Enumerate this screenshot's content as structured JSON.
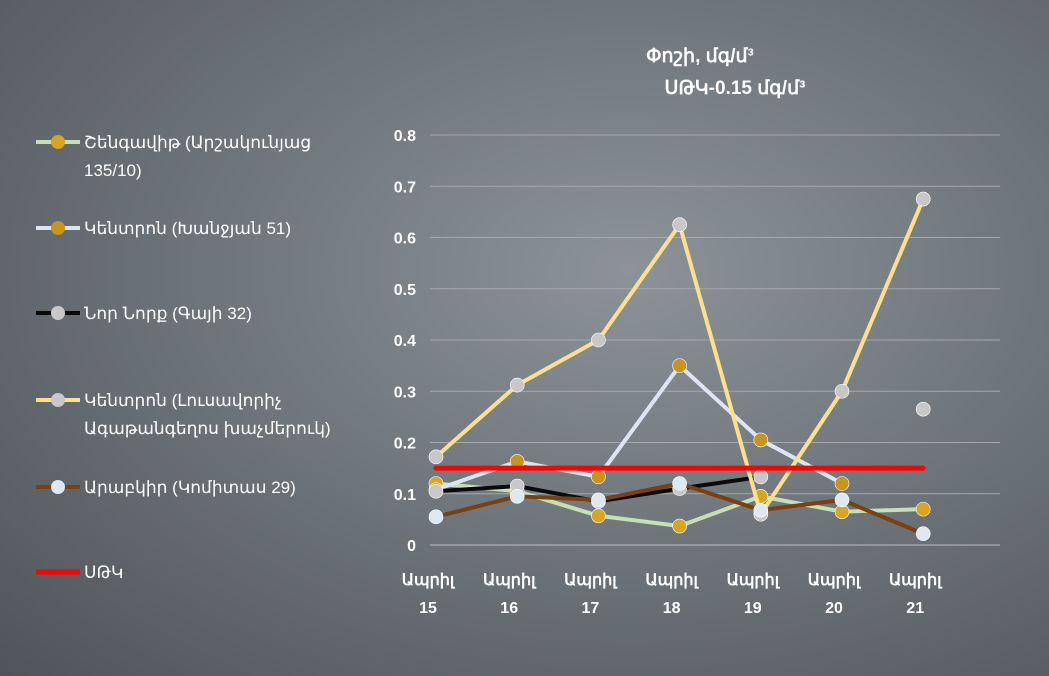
{
  "chart_data": {
    "type": "line",
    "title": "Փոշի, մգ/մ³",
    "subtitle": "ՍԹԿ-0.15 մգ/մ³",
    "categories": [
      [
        "Ապրիլ",
        "15"
      ],
      [
        "Ապրիլ",
        "16"
      ],
      [
        "Ապրիլ",
        "17"
      ],
      [
        "Ապրիլ",
        "18"
      ],
      [
        "Ապրիլ",
        "19"
      ],
      [
        "Ապրիլ",
        "20"
      ],
      [
        "Ապրիլ",
        "21"
      ]
    ],
    "ylim": [
      0,
      0.8
    ],
    "yticks": [
      "0",
      "0.1",
      "0.2",
      "0.3",
      "0.4",
      "0.5",
      "0.6",
      "0.7",
      "0.8"
    ],
    "grid": true,
    "legend_position": "left",
    "series": [
      {
        "name": "Շենգավիթ (Արշակունյաց 135/10)",
        "legend_lines": [
          "Շենգավիթ (Արշակունյաց",
          "135/10)"
        ],
        "line_color": "#c5e0b4",
        "marker_color": "#d9a520",
        "values": [
          0.12,
          0.105,
          0.057,
          0.037,
          0.095,
          0.065,
          0.07
        ]
      },
      {
        "name": "Կենտրոն (Խանջյան 51)",
        "legend_lines": [
          "Կենտրոն (Խանջյան 51)"
        ],
        "line_color": "#dce6f2",
        "marker_color": "#c9941c",
        "values": [
          0.108,
          0.163,
          0.133,
          0.35,
          0.205,
          0.12,
          null
        ]
      },
      {
        "name": "Նոր Նորք (Գայի 32)",
        "legend_lines": [
          "Նոր Նորք (Գայի 32)"
        ],
        "line_color": "#0a0a0a",
        "marker_color": "#c8c8c8",
        "values": [
          0.105,
          0.115,
          0.085,
          0.11,
          0.133,
          null,
          0.265
        ]
      },
      {
        "name": "Կենտրոն (Լուսավորիչ Ագաթանգեղոս խաչմերուկ)",
        "legend_lines": [
          "Կենտրոն (Լուսավորիչ",
          "Ագաթանգեղոս խաչմերուկ)"
        ],
        "line_color": "#ffe08a",
        "marker_color": "#c8c8c8",
        "values": [
          0.172,
          0.312,
          0.4,
          0.625,
          0.06,
          0.3,
          0.675
        ]
      },
      {
        "name": "Արաբկիր (Կոմիտաս 29)",
        "legend_lines": [
          "Արաբկիր (Կոմիտաս 29)"
        ],
        "line_color": "#7b3f10",
        "marker_color": "#dde8f5",
        "values": [
          0.055,
          0.095,
          0.088,
          0.12,
          0.068,
          0.088,
          0.022
        ]
      },
      {
        "name": "ՍԹԿ",
        "legend_lines": [
          "ՍԹԿ"
        ],
        "line_color": "#ff0000",
        "marker_color": null,
        "values": [
          0.15,
          0.15,
          0.15,
          0.15,
          0.15,
          0.15,
          0.15
        ]
      }
    ]
  }
}
